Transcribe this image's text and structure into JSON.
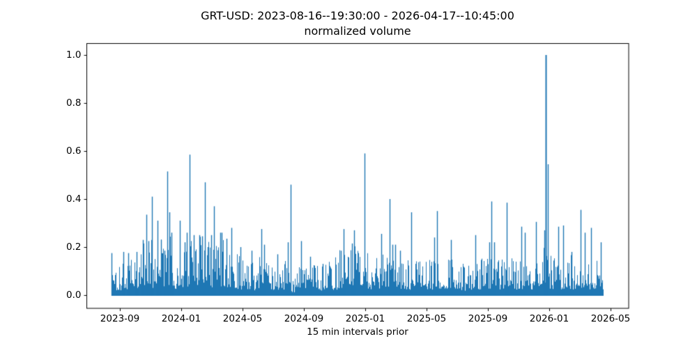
{
  "chart_data": {
    "type": "line",
    "title": "GRT-USD: 2023-08-16--19:30:00 - 2026-04-17--10:45:00",
    "subtitle": "normalized volume",
    "xlabel": "15 min intervals prior",
    "ylabel": "",
    "series_name": "normalized volume",
    "time_start": "2023-08-16 19:30:00",
    "time_end": "2026-04-17 10:45:00",
    "interval": "15 min",
    "grid": false,
    "legend": "none",
    "line_color": "#1f77b4",
    "background_color": "#ffffff",
    "text_color": "#000000",
    "ylim": [
      -0.055,
      1.05
    ],
    "y_ticks": [
      0.0,
      0.2,
      0.4,
      0.6,
      0.8,
      1.0
    ],
    "y_tick_labels": [
      "0.0",
      "0.2",
      "0.4",
      "0.6",
      "0.8",
      "1.0"
    ],
    "x_tick_labels": [
      "2023-09",
      "2024-01",
      "2024-05",
      "2024-09",
      "2025-01",
      "2025-05",
      "2025-09",
      "2026-01",
      "2026-05"
    ],
    "peaks": [
      {
        "d": "2023-08-17",
        "t": 0.0,
        "v": 0.175
      },
      {
        "d": "2023-09-08",
        "t": 0.024,
        "v": 0.18
      },
      {
        "d": "2023-09-17",
        "t": 0.034,
        "v": 0.175
      },
      {
        "d": "2023-10-04",
        "t": 0.051,
        "v": 0.18
      },
      {
        "d": "2023-10-17",
        "t": 0.064,
        "v": 0.23
      },
      {
        "d": "2023-10-24",
        "t": 0.071,
        "v": 0.335
      },
      {
        "d": "2023-10-28",
        "t": 0.075,
        "v": 0.225
      },
      {
        "d": "2023-11-04",
        "t": 0.082,
        "v": 0.41
      },
      {
        "d": "2023-11-15",
        "t": 0.094,
        "v": 0.31
      },
      {
        "d": "2023-11-22",
        "t": 0.101,
        "v": 0.23
      },
      {
        "d": "2023-11-29",
        "t": 0.108,
        "v": 0.185
      },
      {
        "d": "2023-12-04",
        "t": 0.113,
        "v": 0.515
      },
      {
        "d": "2023-12-08",
        "t": 0.118,
        "v": 0.345
      },
      {
        "d": "2023-12-12",
        "t": 0.122,
        "v": 0.26
      },
      {
        "d": "2023-12-29",
        "t": 0.139,
        "v": 0.31
      },
      {
        "d": "2024-01-08",
        "t": 0.149,
        "v": 0.22
      },
      {
        "d": "2024-01-12",
        "t": 0.153,
        "v": 0.26
      },
      {
        "d": "2024-01-18",
        "t": 0.159,
        "v": 0.585
      },
      {
        "d": "2024-01-26",
        "t": 0.167,
        "v": 0.25
      },
      {
        "d": "2024-02-06",
        "t": 0.179,
        "v": 0.25
      },
      {
        "d": "2024-02-12",
        "t": 0.184,
        "v": 0.245
      },
      {
        "d": "2024-02-17",
        "t": 0.19,
        "v": 0.47
      },
      {
        "d": "2024-02-23",
        "t": 0.196,
        "v": 0.2
      },
      {
        "d": "2024-03-01",
        "t": 0.203,
        "v": 0.25
      },
      {
        "d": "2024-03-06",
        "t": 0.209,
        "v": 0.37
      },
      {
        "d": "2024-03-19",
        "t": 0.221,
        "v": 0.26
      },
      {
        "d": "2024-03-22",
        "t": 0.224,
        "v": 0.26
      },
      {
        "d": "2024-03-31",
        "t": 0.234,
        "v": 0.235
      },
      {
        "d": "2024-04-10",
        "t": 0.244,
        "v": 0.28
      },
      {
        "d": "2024-04-28",
        "t": 0.262,
        "v": 0.2
      },
      {
        "d": "2024-05-20",
        "t": 0.285,
        "v": 0.185
      },
      {
        "d": "2024-06-08",
        "t": 0.305,
        "v": 0.275
      },
      {
        "d": "2024-06-14",
        "t": 0.311,
        "v": 0.21
      },
      {
        "d": "2024-07-10",
        "t": 0.338,
        "v": 0.17
      },
      {
        "d": "2024-08-01",
        "t": 0.359,
        "v": 0.22
      },
      {
        "d": "2024-08-06",
        "t": 0.365,
        "v": 0.46
      },
      {
        "d": "2024-08-27",
        "t": 0.386,
        "v": 0.225
      },
      {
        "d": "2024-09-14",
        "t": 0.404,
        "v": 0.16
      },
      {
        "d": "2024-10-09",
        "t": 0.43,
        "v": 0.13
      },
      {
        "d": "2024-11-14",
        "t": 0.467,
        "v": 0.185
      },
      {
        "d": "2024-11-20",
        "t": 0.472,
        "v": 0.275
      },
      {
        "d": "2024-12-07",
        "t": 0.489,
        "v": 0.215
      },
      {
        "d": "2024-12-11",
        "t": 0.494,
        "v": 0.27
      },
      {
        "d": "2025-01-01",
        "t": 0.515,
        "v": 0.59
      },
      {
        "d": "2025-02-03",
        "t": 0.549,
        "v": 0.255
      },
      {
        "d": "2025-02-19",
        "t": 0.566,
        "v": 0.4
      },
      {
        "d": "2025-02-25",
        "t": 0.572,
        "v": 0.21
      },
      {
        "d": "2025-03-03",
        "t": 0.577,
        "v": 0.21
      },
      {
        "d": "2025-03-12",
        "t": 0.587,
        "v": 0.185
      },
      {
        "d": "2025-04-04",
        "t": 0.61,
        "v": 0.345
      },
      {
        "d": "2025-05-19",
        "t": 0.657,
        "v": 0.24
      },
      {
        "d": "2025-05-25",
        "t": 0.662,
        "v": 0.35
      },
      {
        "d": "2025-06-21",
        "t": 0.691,
        "v": 0.23
      },
      {
        "d": "2025-08-09",
        "t": 0.74,
        "v": 0.25
      },
      {
        "d": "2025-09-06",
        "t": 0.769,
        "v": 0.22
      },
      {
        "d": "2025-09-10",
        "t": 0.773,
        "v": 0.39
      },
      {
        "d": "2025-09-15",
        "t": 0.779,
        "v": 0.22
      },
      {
        "d": "2025-10-10",
        "t": 0.804,
        "v": 0.385
      },
      {
        "d": "2025-11-08",
        "t": 0.834,
        "v": 0.285
      },
      {
        "d": "2025-11-15",
        "t": 0.841,
        "v": 0.26
      },
      {
        "d": "2025-12-07",
        "t": 0.864,
        "v": 0.305
      },
      {
        "d": "2025-12-24",
        "t": 0.881,
        "v": 0.27
      },
      {
        "d": "2025-12-27",
        "t": 0.884,
        "v": 1.0
      },
      {
        "d": "2025-12-31",
        "t": 0.888,
        "v": 0.545
      },
      {
        "d": "2026-01-21",
        "t": 0.909,
        "v": 0.285
      },
      {
        "d": "2026-01-31",
        "t": 0.919,
        "v": 0.29
      },
      {
        "d": "2026-02-16",
        "t": 0.936,
        "v": 0.18
      },
      {
        "d": "2026-03-07",
        "t": 0.955,
        "v": 0.355
      },
      {
        "d": "2026-03-15",
        "t": 0.963,
        "v": 0.26
      },
      {
        "d": "2026-03-28",
        "t": 0.976,
        "v": 0.28
      },
      {
        "d": "2026-04-16",
        "t": 0.996,
        "v": 0.22
      }
    ],
    "noise_envelope": [
      [
        0.0,
        0.16
      ],
      [
        0.011,
        0.09
      ],
      [
        0.024,
        0.17
      ],
      [
        0.037,
        0.15
      ],
      [
        0.051,
        0.17
      ],
      [
        0.064,
        0.22
      ],
      [
        0.077,
        0.23
      ],
      [
        0.088,
        0.18
      ],
      [
        0.099,
        0.25
      ],
      [
        0.111,
        0.17
      ],
      [
        0.121,
        0.27
      ],
      [
        0.128,
        0.06
      ],
      [
        0.136,
        0.18
      ],
      [
        0.145,
        0.22
      ],
      [
        0.156,
        0.24
      ],
      [
        0.167,
        0.2
      ],
      [
        0.179,
        0.22
      ],
      [
        0.19,
        0.24
      ],
      [
        0.201,
        0.22
      ],
      [
        0.213,
        0.2
      ],
      [
        0.224,
        0.24
      ],
      [
        0.235,
        0.2
      ],
      [
        0.247,
        0.17
      ],
      [
        0.258,
        0.15
      ],
      [
        0.27,
        0.16
      ],
      [
        0.281,
        0.15
      ],
      [
        0.292,
        0.13
      ],
      [
        0.304,
        0.16
      ],
      [
        0.315,
        0.15
      ],
      [
        0.326,
        0.11
      ],
      [
        0.338,
        0.13
      ],
      [
        0.349,
        0.12
      ],
      [
        0.36,
        0.18
      ],
      [
        0.37,
        0.05
      ],
      [
        0.38,
        0.12
      ],
      [
        0.391,
        0.13
      ],
      [
        0.403,
        0.14
      ],
      [
        0.414,
        0.13
      ],
      [
        0.426,
        0.12
      ],
      [
        0.437,
        0.13
      ],
      [
        0.448,
        0.13
      ],
      [
        0.46,
        0.15
      ],
      [
        0.471,
        0.2
      ],
      [
        0.482,
        0.18
      ],
      [
        0.494,
        0.21
      ],
      [
        0.505,
        0.17
      ],
      [
        0.516,
        0.17
      ],
      [
        0.528,
        0.16
      ],
      [
        0.539,
        0.17
      ],
      [
        0.55,
        0.19
      ],
      [
        0.562,
        0.17
      ],
      [
        0.573,
        0.18
      ],
      [
        0.584,
        0.14
      ],
      [
        0.596,
        0.15
      ],
      [
        0.607,
        0.15
      ],
      [
        0.618,
        0.15
      ],
      [
        0.63,
        0.14
      ],
      [
        0.641,
        0.15
      ],
      [
        0.652,
        0.14
      ],
      [
        0.664,
        0.16
      ],
      [
        0.675,
        0.12
      ],
      [
        0.687,
        0.14
      ],
      [
        0.698,
        0.13
      ],
      [
        0.709,
        0.13
      ],
      [
        0.721,
        0.12
      ],
      [
        0.732,
        0.14
      ],
      [
        0.743,
        0.14
      ],
      [
        0.755,
        0.14
      ],
      [
        0.766,
        0.17
      ],
      [
        0.777,
        0.18
      ],
      [
        0.789,
        0.14
      ],
      [
        0.8,
        0.16
      ],
      [
        0.811,
        0.15
      ],
      [
        0.823,
        0.15
      ],
      [
        0.834,
        0.17
      ],
      [
        0.845,
        0.15
      ],
      [
        0.857,
        0.15
      ],
      [
        0.868,
        0.16
      ],
      [
        0.879,
        0.19
      ],
      [
        0.891,
        0.16
      ],
      [
        0.902,
        0.15
      ],
      [
        0.913,
        0.16
      ],
      [
        0.925,
        0.15
      ],
      [
        0.936,
        0.16
      ],
      [
        0.947,
        0.15
      ],
      [
        0.959,
        0.17
      ],
      [
        0.97,
        0.16
      ],
      [
        0.982,
        0.14
      ],
      [
        0.993,
        0.13
      ],
      [
        1.0,
        0.16
      ]
    ]
  }
}
